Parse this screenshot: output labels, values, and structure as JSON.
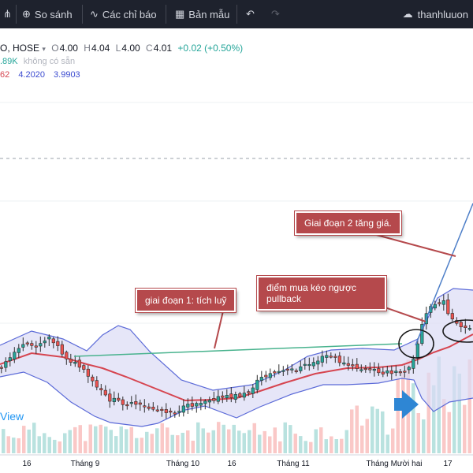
{
  "toolbar": {
    "compare_label": "So sánh",
    "indicators_label": "Các chỉ báo",
    "templates_label": "Bản mẫu",
    "user_label": "thanhluuon"
  },
  "legend": {
    "symbol": "O, HOSE",
    "open_key": "O",
    "open": "4.00",
    "high_key": "H",
    "high": "4.04",
    "low_key": "L",
    "low": "4.00",
    "close_key": "C",
    "close": "4.01",
    "change": "+0.02 (+0.50%)",
    "volume_value": ".89K",
    "volume_na": "không có sẵn",
    "bb_middle": "62",
    "bb_upper": "4.2020",
    "bb_lower": "3.9903"
  },
  "watermark": "View",
  "colors": {
    "up": "#26a69a",
    "down": "#ef5350",
    "bb_line": "#5b6ad8",
    "bb_fill": "#dcdcf5",
    "basis": "#d64550",
    "trend": "#49b38e",
    "callout": "#b5494c",
    "arrow": "#2e86d4"
  },
  "chart_data": {
    "type": "candlestick",
    "x_ticks": [
      "16",
      "Tháng 9",
      "Tháng 10",
      "16",
      "Tháng 11",
      "Tháng Mười hai",
      "17"
    ],
    "bollinger_bands": true,
    "annotations": [
      {
        "text": "giai đoạn 1: tích luỹ"
      },
      {
        "text": "điểm mua kéo ngược pullback"
      },
      {
        "text": "Giai đoạn 2 tăng giá."
      }
    ],
    "last_bar": {
      "open": 4.0,
      "high": 4.04,
      "low": 4.0,
      "close": 4.01,
      "change": 0.02,
      "change_pct": 0.5
    }
  }
}
